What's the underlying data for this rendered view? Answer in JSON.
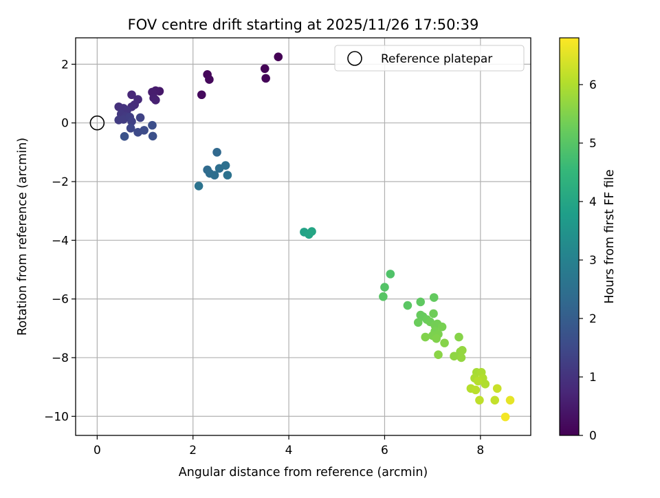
{
  "chart_data": {
    "type": "scatter",
    "title": "FOV centre drift starting at 2025/11/26 17:50:39",
    "xlabel": "Angular distance from reference (arcmin)",
    "ylabel": "Rotation from reference (arcmin)",
    "xlim": [
      -0.45,
      9.05
    ],
    "ylim": [
      -10.65,
      2.9
    ],
    "xticks": [
      0,
      2,
      4,
      6,
      8
    ],
    "yticks": [
      2,
      0,
      -2,
      -4,
      -6,
      -8,
      -10
    ],
    "grid": true,
    "legend": {
      "placement": "upper right",
      "entries": [
        "Reference platepar"
      ]
    },
    "reference_point": {
      "label": "Reference platepar",
      "x": 0,
      "y": 0
    },
    "colorbar": {
      "label": "Hours from first FF file",
      "colormap": "viridis",
      "range": [
        0,
        6.8
      ],
      "ticks": [
        0,
        1,
        2,
        3,
        4,
        5,
        6
      ]
    },
    "series": [
      {
        "columns": [
          "x",
          "y",
          "hours"
        ],
        "points": [
          [
            3.78,
            2.25,
            0.02
          ],
          [
            3.5,
            1.85,
            0.05
          ],
          [
            3.52,
            1.52,
            0.08
          ],
          [
            2.3,
            1.65,
            0.12
          ],
          [
            2.34,
            1.48,
            0.15
          ],
          [
            2.18,
            0.96,
            0.18
          ],
          [
            1.3,
            1.08,
            0.45
          ],
          [
            1.22,
            1.1,
            0.5
          ],
          [
            1.15,
            1.05,
            0.55
          ],
          [
            1.18,
            0.85,
            0.58
          ],
          [
            1.22,
            0.78,
            0.62
          ],
          [
            0.72,
            0.96,
            0.75
          ],
          [
            0.85,
            0.8,
            0.8
          ],
          [
            0.78,
            0.62,
            0.85
          ],
          [
            0.72,
            0.55,
            0.88
          ],
          [
            0.45,
            0.55,
            0.95
          ],
          [
            0.55,
            0.5,
            1.0
          ],
          [
            0.62,
            0.42,
            1.05
          ],
          [
            0.5,
            0.3,
            1.1
          ],
          [
            0.6,
            0.22,
            1.15
          ],
          [
            0.45,
            0.1,
            1.2
          ],
          [
            0.55,
            0.12,
            1.22
          ],
          [
            0.68,
            0.2,
            1.25
          ],
          [
            0.72,
            0.05,
            1.3
          ],
          [
            0.9,
            0.18,
            1.35
          ],
          [
            0.7,
            -0.18,
            1.45
          ],
          [
            0.85,
            -0.32,
            1.5
          ],
          [
            0.98,
            -0.25,
            1.55
          ],
          [
            1.15,
            -0.08,
            1.6
          ],
          [
            1.16,
            -0.45,
            1.65
          ],
          [
            0.57,
            -0.46,
            1.7
          ],
          [
            2.5,
            -1.0,
            2.3
          ],
          [
            2.3,
            -1.6,
            2.35
          ],
          [
            2.35,
            -1.72,
            2.4
          ],
          [
            2.45,
            -1.78,
            2.45
          ],
          [
            2.55,
            -1.55,
            2.45
          ],
          [
            2.68,
            -1.45,
            2.5
          ],
          [
            2.72,
            -1.78,
            2.55
          ],
          [
            2.12,
            -2.15,
            2.6
          ],
          [
            4.32,
            -3.72,
            3.9
          ],
          [
            4.42,
            -3.8,
            3.95
          ],
          [
            4.48,
            -3.7,
            4.0
          ],
          [
            6.12,
            -5.15,
            4.9
          ],
          [
            6.0,
            -5.6,
            4.95
          ],
          [
            5.97,
            -5.92,
            5.0
          ],
          [
            6.48,
            -6.22,
            5.05
          ],
          [
            6.75,
            -6.1,
            5.1
          ],
          [
            7.03,
            -5.95,
            5.15
          ],
          [
            6.75,
            -6.55,
            5.2
          ],
          [
            6.8,
            -6.6,
            5.2
          ],
          [
            6.88,
            -6.7,
            5.25
          ],
          [
            6.7,
            -6.8,
            5.25
          ],
          [
            6.95,
            -6.78,
            5.3
          ],
          [
            7.02,
            -6.5,
            5.3
          ],
          [
            7.05,
            -6.9,
            5.35
          ],
          [
            7.1,
            -6.85,
            5.35
          ],
          [
            7.2,
            -6.95,
            5.4
          ],
          [
            7.05,
            -7.1,
            5.4
          ],
          [
            7.12,
            -7.2,
            5.45
          ],
          [
            7.0,
            -7.25,
            5.45
          ],
          [
            6.85,
            -7.3,
            5.5
          ],
          [
            7.08,
            -7.35,
            5.5
          ],
          [
            7.25,
            -7.5,
            5.55
          ],
          [
            7.55,
            -7.3,
            5.55
          ],
          [
            7.12,
            -7.9,
            5.6
          ],
          [
            7.45,
            -7.95,
            5.65
          ],
          [
            7.58,
            -7.8,
            5.65
          ],
          [
            7.6,
            -8.0,
            5.7
          ],
          [
            7.62,
            -7.75,
            5.7
          ],
          [
            7.92,
            -8.5,
            5.9
          ],
          [
            8.02,
            -8.5,
            5.95
          ],
          [
            7.88,
            -8.7,
            5.95
          ],
          [
            8.05,
            -8.7,
            6.0
          ],
          [
            8.1,
            -8.9,
            6.0
          ],
          [
            7.95,
            -8.8,
            6.05
          ],
          [
            7.8,
            -9.05,
            6.05
          ],
          [
            7.9,
            -9.1,
            6.1
          ],
          [
            7.98,
            -9.45,
            6.15
          ],
          [
            8.3,
            -9.45,
            6.2
          ],
          [
            8.35,
            -9.05,
            6.25
          ],
          [
            8.62,
            -9.45,
            6.55
          ],
          [
            8.52,
            -10.02,
            6.7
          ]
        ]
      }
    ]
  }
}
